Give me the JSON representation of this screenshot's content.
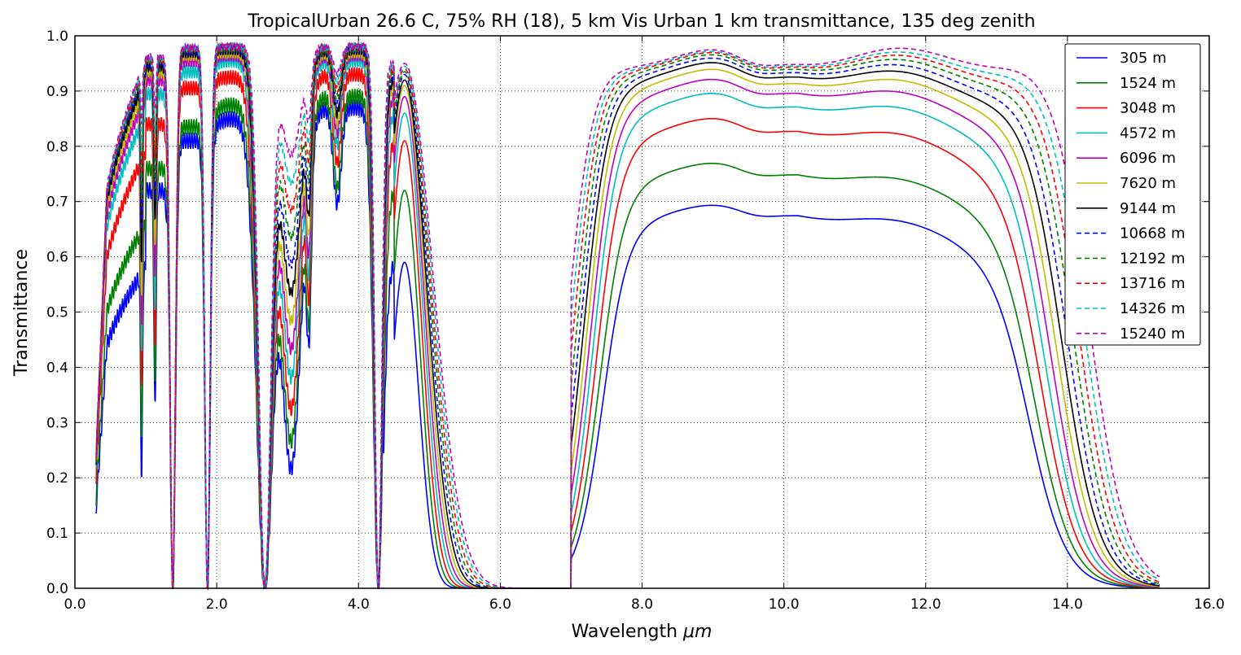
{
  "chart_data": {
    "type": "line",
    "title": "TropicalUrban 26.6 C, 75% RH (18), 5 km Vis Urban 1 km transmittance, 135 deg zenith",
    "xlabel_text": "Wavelength ",
    "xlabel_unit": "μm",
    "ylabel": "Transmittance",
    "xlim": [
      0,
      16
    ],
    "ylim": [
      0,
      1
    ],
    "xticks": [
      0,
      2,
      4,
      6,
      8,
      10,
      12,
      14,
      16
    ],
    "xtick_labels": [
      "0.0",
      "2.0",
      "4.0",
      "6.0",
      "8.0",
      "10.0",
      "12.0",
      "14.0",
      "16.0"
    ],
    "yticks": [
      0,
      0.1,
      0.2,
      0.3,
      0.4,
      0.5,
      0.6,
      0.7,
      0.8,
      0.9,
      1.0
    ],
    "ytick_labels": [
      "0.0",
      "0.1",
      "0.2",
      "0.3",
      "0.4",
      "0.5",
      "0.6",
      "0.7",
      "0.8",
      "0.9",
      "1.0"
    ],
    "grid": true,
    "legend_position": "top-right",
    "series": [
      {
        "name": "305 m",
        "color": "#0000ff",
        "dashed": false,
        "window_max": 0.685,
        "peaks": [
          0.58,
          0.72,
          0.81,
          0.85,
          0.87,
          0.59
        ]
      },
      {
        "name": "1524 m",
        "color": "#008000",
        "dashed": false,
        "window_max": 0.76,
        "peaks": [
          0.66,
          0.76,
          0.835,
          0.875,
          0.89,
          0.72
        ]
      },
      {
        "name": "3048 m",
        "color": "#ff0000",
        "dashed": false,
        "window_max": 0.84,
        "peaks": [
          0.79,
          0.84,
          0.905,
          0.925,
          0.93,
          0.81
        ]
      },
      {
        "name": "4572 m",
        "color": "#00bfbf",
        "dashed": false,
        "window_max": 0.885,
        "peaks": [
          0.86,
          0.895,
          0.935,
          0.955,
          0.955,
          0.86
        ]
      },
      {
        "name": "6096 m",
        "color": "#bf00bf",
        "dashed": false,
        "window_max": 0.91,
        "peaks": [
          0.89,
          0.92,
          0.955,
          0.965,
          0.965,
          0.89
        ]
      },
      {
        "name": "7620 m",
        "color": "#bfbf00",
        "dashed": false,
        "window_max": 0.928,
        "peaks": [
          0.91,
          0.935,
          0.965,
          0.97,
          0.97,
          0.91
        ]
      },
      {
        "name": "9144 m",
        "color": "#000000",
        "dashed": false,
        "window_max": 0.94,
        "peaks": [
          0.925,
          0.945,
          0.97,
          0.975,
          0.975,
          0.92
        ]
      },
      {
        "name": "10668 m",
        "color": "#0000ff",
        "dashed": true,
        "window_max": 0.948,
        "peaks": [
          0.935,
          0.95,
          0.973,
          0.977,
          0.977,
          0.93
        ]
      },
      {
        "name": "12192 m",
        "color": "#008000",
        "dashed": true,
        "window_max": 0.954,
        "peaks": [
          0.942,
          0.955,
          0.975,
          0.978,
          0.978,
          0.935
        ]
      },
      {
        "name": "13716 m",
        "color": "#ff0000",
        "dashed": true,
        "window_max": 0.958,
        "peaks": [
          0.948,
          0.958,
          0.977,
          0.979,
          0.979,
          0.94
        ]
      },
      {
        "name": "14326 m",
        "color": "#00bfbf",
        "dashed": true,
        "window_max": 0.96,
        "peaks": [
          0.952,
          0.96,
          0.978,
          0.98,
          0.98,
          0.945
        ]
      },
      {
        "name": "15240 m",
        "color": "#bf00bf",
        "dashed": true,
        "window_max": 0.963,
        "peaks": [
          0.956,
          0.963,
          0.979,
          0.981,
          0.981,
          0.95
        ]
      }
    ]
  }
}
